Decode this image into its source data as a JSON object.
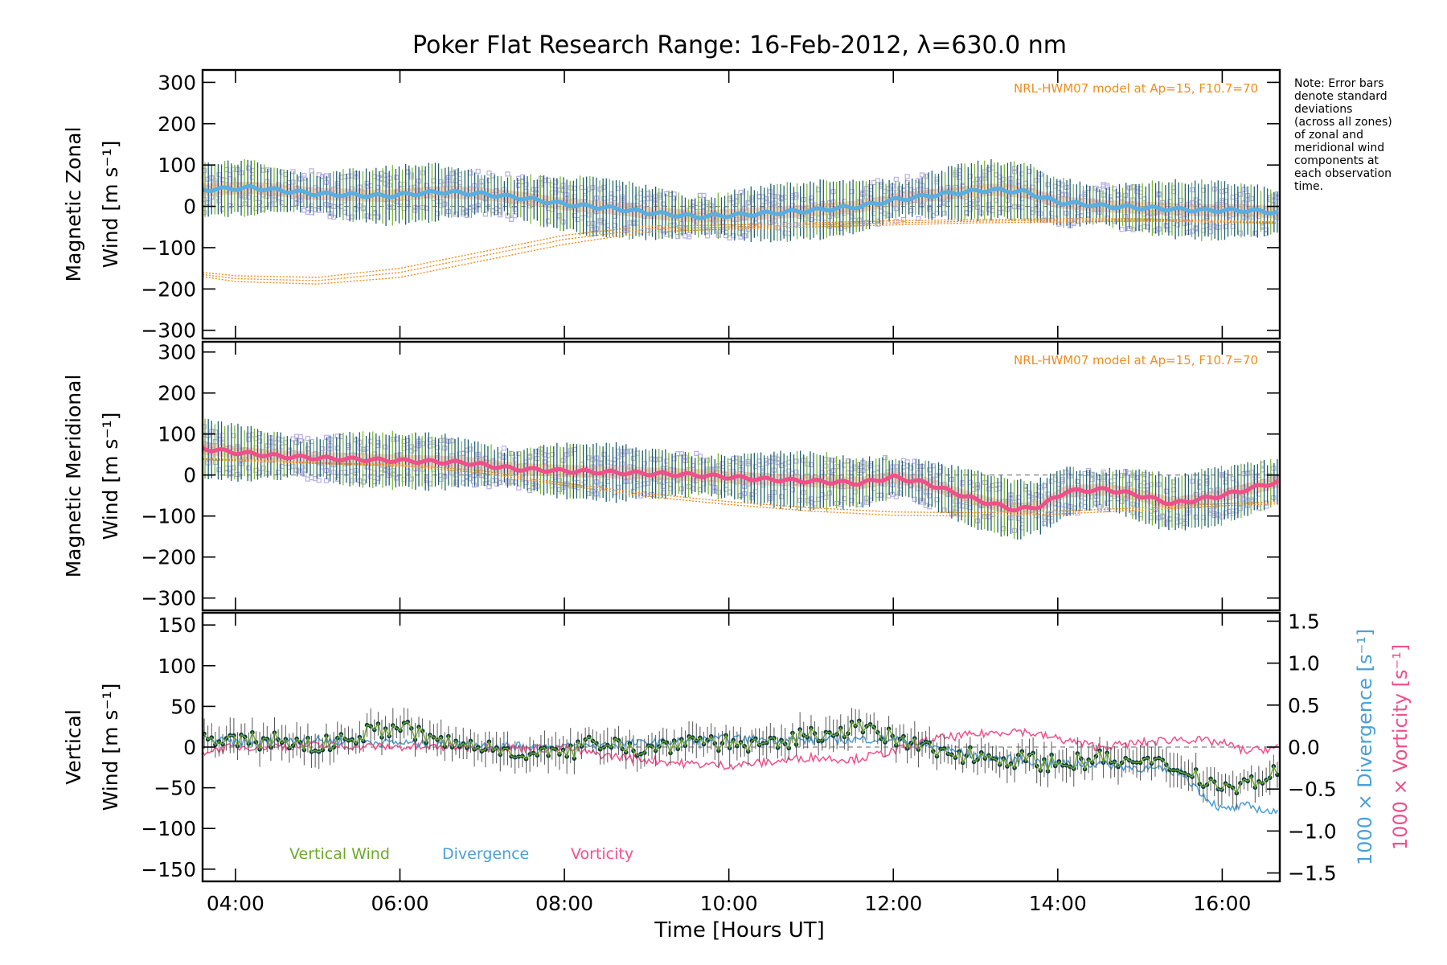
{
  "chart_data": {
    "title": "Poker Flat Research Range: 16-Feb-2012, λ=630.0 nm",
    "note": [
      "Note: Error bars",
      "denote standard",
      "deviations",
      "(across all zones)",
      "of zonal and",
      "meridional wind",
      "components at",
      "each observation",
      "time."
    ],
    "xlabel": "Time [Hours UT]",
    "xlim": [
      3.6,
      16.7
    ],
    "xticks": [
      {
        "v": 4,
        "label": "04:00"
      },
      {
        "v": 6,
        "label": "06:00"
      },
      {
        "v": 8,
        "label": "08:00"
      },
      {
        "v": 10,
        "label": "10:00"
      },
      {
        "v": 12,
        "label": "12:00"
      },
      {
        "v": 14,
        "label": "14:00"
      },
      {
        "v": 16,
        "label": "16:00"
      }
    ],
    "panels": [
      {
        "id": "zonal",
        "type": "line",
        "ylabel_line1": "Magnetic Zonal",
        "ylabel_line2": "Wind [m s⁻¹]",
        "ylim": [
          -320,
          330
        ],
        "yticks": [
          300,
          200,
          100,
          0,
          -100,
          -200,
          -300
        ],
        "ytick_labels": [
          "300",
          "200",
          "100",
          "0",
          "−100",
          "−200",
          "−300"
        ],
        "model_label": "NRL-HWM07 model at Ap=15, F10.7=70",
        "colors": {
          "mean": "#5aaee0",
          "errorbar_dark": "#1f5f6f",
          "errorbar_green": "#7ab83a",
          "zone_points": "#b8b0e8",
          "model": "#f08c1e",
          "pink_fill": "#f5b0a8",
          "end_marker": "#2050c0"
        },
        "mean_series": {
          "x": [
            3.6,
            4.2,
            5.0,
            5.8,
            6.5,
            7.0,
            7.5,
            8.0,
            8.6,
            9.0,
            9.6,
            10.2,
            11.0,
            11.6,
            12.0,
            12.6,
            13.2,
            13.6,
            14.0,
            14.6,
            15.2,
            15.8,
            16.3,
            16.7
          ],
          "y": [
            40,
            45,
            30,
            25,
            35,
            30,
            20,
            5,
            -5,
            -15,
            -25,
            -20,
            -10,
            0,
            15,
            30,
            40,
            35,
            10,
            0,
            -5,
            -10,
            -10,
            -15
          ]
        },
        "model_curves": [
          {
            "x": [
              3.6,
              4.0,
              5.0,
              6.0,
              7.0,
              8.0,
              9.0,
              10.0,
              11.0,
              12.0,
              13.0,
              14.0,
              15.0,
              16.0,
              16.7
            ],
            "y": [
              -160,
              -168,
              -172,
              -150,
              -110,
              -70,
              -48,
              -45,
              -40,
              -35,
              -32,
              -30,
              -30,
              -35,
              -38
            ]
          },
          {
            "x": [
              3.6,
              4.0,
              5.0,
              6.0,
              7.0,
              8.0,
              9.0,
              10.0,
              11.0,
              12.0,
              13.0,
              14.0,
              15.0,
              16.0,
              16.7
            ],
            "y": [
              -165,
              -175,
              -180,
              -160,
              -120,
              -80,
              -55,
              -50,
              -45,
              -40,
              -36,
              -34,
              -33,
              -36,
              -40
            ]
          },
          {
            "x": [
              3.6,
              4.0,
              5.0,
              6.0,
              7.0,
              8.0,
              9.0,
              10.0,
              11.0,
              12.0,
              13.0,
              14.0,
              15.0,
              16.0,
              16.7
            ],
            "y": [
              -170,
              -182,
              -188,
              -172,
              -132,
              -92,
              -62,
              -55,
              -50,
              -45,
              -40,
              -38,
              -36,
              -38,
              -42
            ]
          }
        ]
      },
      {
        "id": "meridional",
        "type": "line",
        "ylabel_line1": "Magnetic Meridional",
        "ylabel_line2": "Wind [m s⁻¹]",
        "ylim": [
          -330,
          325
        ],
        "yticks": [
          300,
          200,
          100,
          0,
          -100,
          -200,
          -300
        ],
        "ytick_labels": [
          "300",
          "200",
          "100",
          "0",
          "−100",
          "−200",
          "−300"
        ],
        "model_label": "NRL-HWM07 model at Ap=15, F10.7=70",
        "colors": {
          "mean": "#f0508a",
          "errorbar_dark": "#1f5f6f",
          "errorbar_green": "#7ab83a",
          "zone_points": "#b8b0e8",
          "model": "#f08c1e",
          "pink_fill": "#f5b0a8"
        },
        "mean_series": {
          "x": [
            3.6,
            4.0,
            4.6,
            5.2,
            6.0,
            6.8,
            7.4,
            8.0,
            8.8,
            9.6,
            10.4,
            11.0,
            11.6,
            12.0,
            12.4,
            13.0,
            13.5,
            13.8,
            14.1,
            14.6,
            15.0,
            15.4,
            16.0,
            16.7
          ],
          "y": [
            65,
            55,
            45,
            40,
            35,
            30,
            15,
            10,
            5,
            0,
            -10,
            -15,
            -20,
            -5,
            -20,
            -60,
            -85,
            -75,
            -40,
            -35,
            -50,
            -70,
            -50,
            -15
          ]
        },
        "model_curves": [
          {
            "x": [
              3.6,
              4.0,
              5.0,
              6.0,
              7.0,
              8.0,
              9.0,
              10.0,
              11.0,
              12.0,
              13.0,
              14.0,
              15.0,
              16.0,
              16.7
            ],
            "y": [
              40,
              38,
              30,
              25,
              10,
              -20,
              -45,
              -65,
              -80,
              -90,
              -92,
              -88,
              -80,
              -70,
              -65
            ]
          },
          {
            "x": [
              3.6,
              4.0,
              5.0,
              6.0,
              7.0,
              8.0,
              9.0,
              10.0,
              11.0,
              12.0,
              13.0,
              14.0,
              15.0,
              16.0,
              16.7
            ],
            "y": [
              38,
              35,
              28,
              22,
              5,
              -25,
              -52,
              -72,
              -88,
              -98,
              -100,
              -95,
              -86,
              -75,
              -70
            ]
          }
        ]
      },
      {
        "id": "vertical",
        "type": "line",
        "ylabel_line1": "Vertical",
        "ylabel_line2": "Wind [m s⁻¹]",
        "ylim": [
          -165,
          165
        ],
        "yticks": [
          150,
          100,
          50,
          0,
          -50,
          -100,
          -150
        ],
        "ytick_labels": [
          "150",
          "100",
          "50",
          "0",
          "−50",
          "−100",
          "−150"
        ],
        "y2lim": [
          -1.6,
          1.6
        ],
        "y2ticks": [
          1.5,
          1.0,
          0.5,
          0.0,
          -0.5,
          -1.0,
          -1.5
        ],
        "y2tick_labels": [
          "1.5",
          "1.0",
          "0.5",
          "0.0",
          "−0.5",
          "−1.0",
          "−1.5"
        ],
        "y2label_div": "1000 × Divergence [s⁻¹]",
        "y2label_vort": "1000 × Vorticity [s⁻¹]",
        "legend": [
          {
            "label": "Vertical Wind",
            "color": "#6aaa2a"
          },
          {
            "label": "Divergence",
            "color": "#4aa0d8"
          },
          {
            "label": "Vorticity",
            "color": "#f0508a"
          }
        ],
        "series": [
          {
            "name": "Vertical Wind",
            "x": [
              3.6,
              4.0,
              4.5,
              5.0,
              5.5,
              6.0,
              6.5,
              7.0,
              7.5,
              8.0,
              8.5,
              9.0,
              9.5,
              10.0,
              10.5,
              11.0,
              11.5,
              12.0,
              12.5,
              13.0,
              13.5,
              14.0,
              14.5,
              15.0,
              15.5,
              16.0,
              16.3,
              16.7
            ],
            "y": [
              10,
              5,
              10,
              0,
              15,
              25,
              5,
              0,
              -5,
              -10,
              10,
              -5,
              10,
              5,
              0,
              15,
              25,
              10,
              -5,
              -10,
              -15,
              -20,
              -15,
              -20,
              -25,
              -50,
              -45,
              -30
            ]
          },
          {
            "name": "Divergence",
            "x": [
              3.6,
              4.0,
              5.0,
              6.0,
              7.0,
              8.0,
              9.0,
              10.0,
              11.0,
              12.0,
              12.5,
              13.0,
              13.5,
              14.0,
              14.5,
              15.0,
              15.5,
              15.8,
              16.0,
              16.3,
              16.7
            ],
            "y": [
              0.1,
              0.05,
              0.08,
              0.05,
              0.02,
              0.0,
              0.05,
              0.1,
              0.08,
              0.1,
              0.0,
              -0.1,
              -0.15,
              -0.2,
              -0.2,
              -0.25,
              -0.3,
              -0.6,
              -0.75,
              -0.7,
              -0.8
            ]
          },
          {
            "name": "Vorticity",
            "x": [
              3.6,
              4.0,
              5.0,
              6.0,
              7.0,
              8.0,
              8.5,
              9.0,
              9.5,
              10.0,
              10.5,
              11.0,
              11.5,
              12.0,
              12.5,
              13.0,
              13.5,
              14.0,
              14.5,
              15.0,
              15.5,
              16.0,
              16.3,
              16.7
            ],
            "y": [
              -0.05,
              0.0,
              0.02,
              0.0,
              0.0,
              -0.02,
              -0.1,
              -0.15,
              -0.2,
              -0.22,
              -0.18,
              -0.12,
              -0.15,
              -0.05,
              0.1,
              0.15,
              0.2,
              0.1,
              0.0,
              0.05,
              0.1,
              0.05,
              -0.05,
              0.0
            ]
          }
        ]
      }
    ]
  }
}
